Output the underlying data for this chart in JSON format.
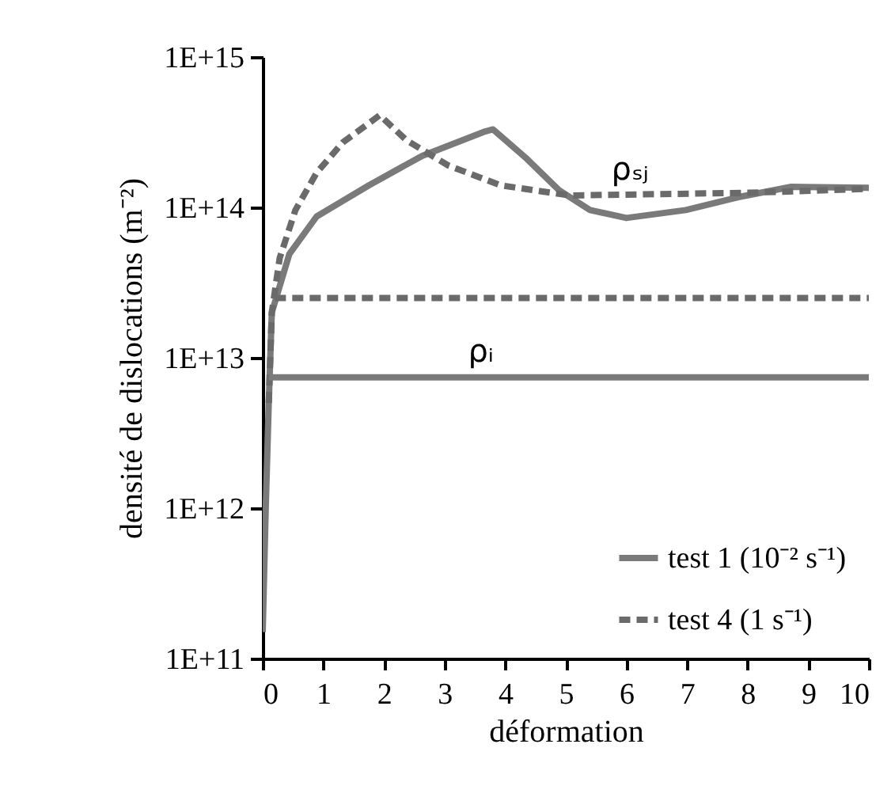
{
  "chart_data": {
    "type": "line",
    "xlabel": "déformation",
    "ylabel": "densité de dislocations (m⁻²)",
    "log": "y",
    "grid": false,
    "legend": "bottom right",
    "marker": "none",
    "xlim": [
      0,
      10
    ],
    "xticks": [
      0,
      1,
      2,
      3,
      4,
      5,
      6,
      7,
      8,
      9,
      10
    ],
    "ylim": [
      100000000000.0,
      1000000000000000.0
    ],
    "yticks": [
      {
        "value": 100000000000.0,
        "label": "1E+11"
      },
      {
        "value": 1000000000000.0,
        "label": "1E+12"
      },
      {
        "value": 10000000000000.0,
        "label": "1E+13"
      },
      {
        "value": 100000000000000.0,
        "label": "1E+14"
      },
      {
        "value": 1000000000000000.0,
        "label": "1E+15"
      }
    ],
    "series": [
      {
        "name": "test 1 (10⁻² s⁻¹)",
        "color": "#7a7a7a",
        "line_style": "solid",
        "x": [
          0,
          0.05,
          0.1,
          0.15,
          0.44,
          0.89,
          1.75,
          2.63,
          3.67,
          3.8,
          4.36,
          4.89,
          5.4,
          6.0,
          6.98,
          7.85,
          8.72,
          10
        ],
        "values": [
          150000000000.0,
          1000000000000.0,
          5000000000000.0,
          20000000000000.0,
          49000000000000.0,
          87000000000000.0,
          140000000000000.0,
          220000000000000.0,
          320000000000000.0,
          330000000000000.0,
          210000000000000.0,
          130000000000000.0,
          96000000000000.0,
          85000000000000.0,
          96000000000000.0,
          117000000000000.0,
          137000000000000.0,
          135000000000000.0
        ]
      },
      {
        "name": "test 4 (1 s⁻¹)",
        "color": "#6a6a6a",
        "line_style": "dashed",
        "x": [
          0.1,
          0.15,
          0.28,
          0.54,
          0.89,
          1.32,
          1.93,
          2.37,
          3.06,
          3.93,
          5.07,
          8.0,
          10
        ],
        "values": [
          5000000000000.0,
          20000000000000.0,
          46000000000000.0,
          96000000000000.0,
          170000000000000.0,
          270000000000000.0,
          410000000000000.0,
          280000000000000.0,
          190000000000000.0,
          140000000000000.0,
          120000000000000.0,
          125000000000000.0,
          133000000000000.0
        ]
      },
      {
        "color": "#7a7a7a",
        "line_style": "solid",
        "x": [
          0.1,
          10
        ],
        "values": [
          7400000000000.0,
          7400000000000.0
        ]
      },
      {
        "color": "#6a6a6a",
        "line_style": "dashed",
        "x": [
          0.2,
          10
        ],
        "values": [
          25000000000000.0,
          25000000000000.0
        ]
      }
    ],
    "annotations": [
      {
        "text": "ρₛⱼ",
        "x": 6.06,
        "y": 120000000000000.0
      },
      {
        "text": "ρᵢ",
        "x": 3.6,
        "y": 7400000000000.0
      }
    ]
  }
}
